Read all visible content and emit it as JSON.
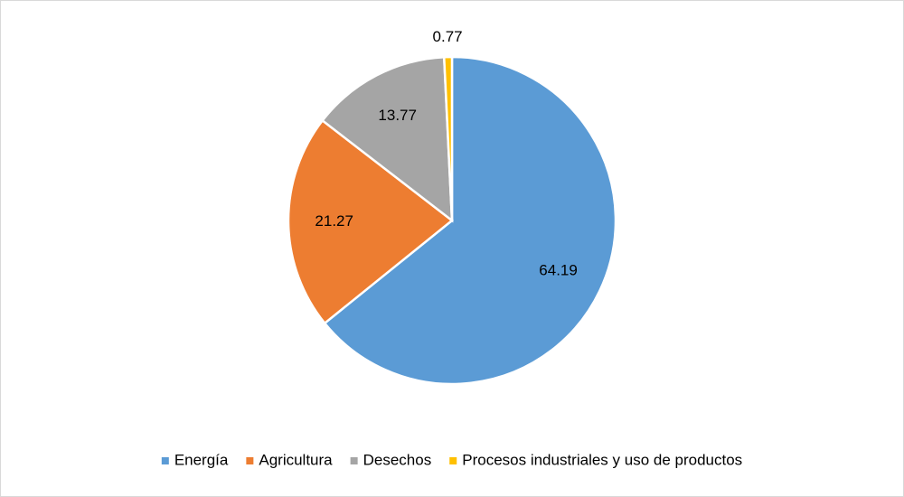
{
  "chart_data": {
    "type": "pie",
    "categories": [
      "Energía",
      "Agricultura",
      "Desechos",
      "Procesos industriales y uso de productos"
    ],
    "values": [
      64.19,
      21.27,
      13.77,
      0.77
    ],
    "colors": [
      "#5b9bd5",
      "#ed7d31",
      "#a5a5a5",
      "#ffc000"
    ],
    "legend": "bottom"
  }
}
